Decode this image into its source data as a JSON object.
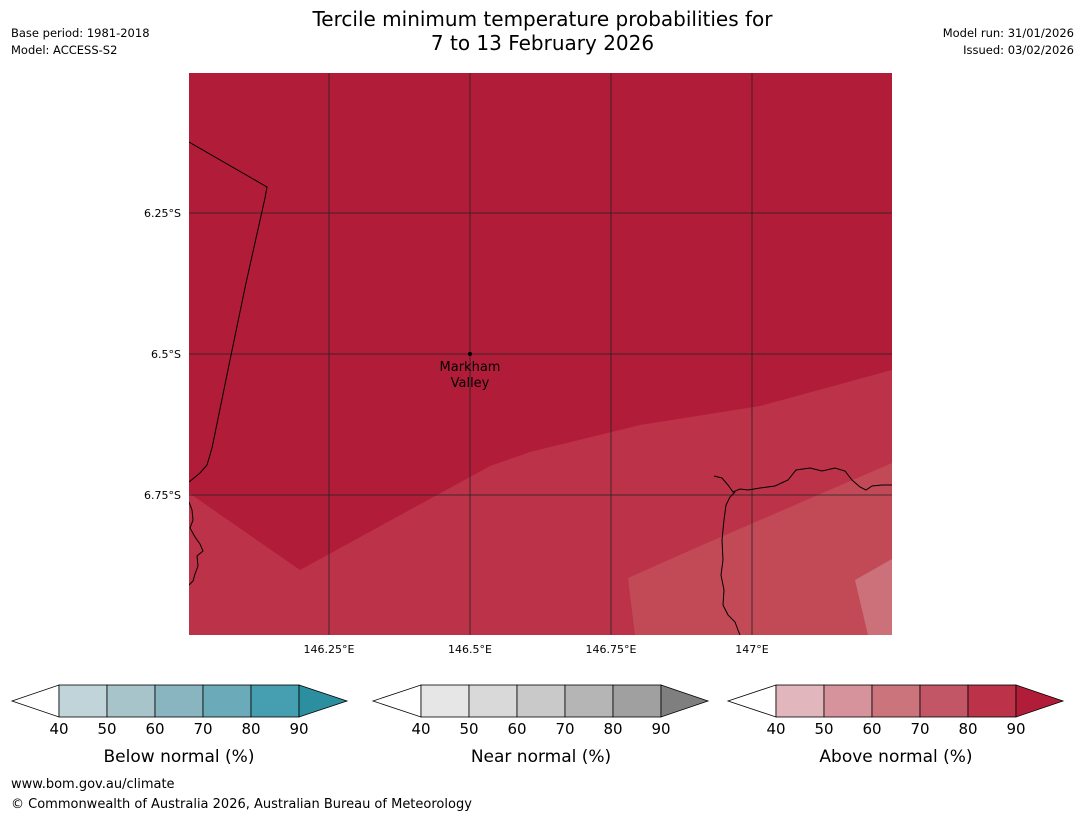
{
  "header": {
    "base_period": "Base period: 1981-2018",
    "model": "Model: ACCESS-S2",
    "title_line1": "Tercile minimum temperature probabilities for",
    "title_line2": "7 to 13 February 2026",
    "model_run": "Model run: 31/01/2026",
    "issued": "Issued: 03/02/2026"
  },
  "map": {
    "lat_labels": [
      "6.25°S",
      "6.5°S",
      "6.75°S"
    ],
    "lon_labels": [
      "146.25°E",
      "146.5°E",
      "146.75°E",
      "147°E"
    ],
    "place": {
      "name_line1": "Markham",
      "name_line2": "Valley"
    },
    "fill_colors": {
      "above_90": "#b11d38",
      "above_80": "#bc3249",
      "above_70": "#c24a57",
      "above_60": "#cc717a"
    }
  },
  "colorbars": [
    {
      "title": "Below normal (%)",
      "ticks": [
        "40",
        "50",
        "60",
        "70",
        "80",
        "90"
      ],
      "colors": [
        "#c0d4da",
        "#a6c4ca",
        "#89b5c0",
        "#6baab9",
        "#469fb0",
        "#2b8fa0"
      ]
    },
    {
      "title": "Near normal (%)",
      "ticks": [
        "40",
        "50",
        "60",
        "70",
        "80",
        "90"
      ],
      "colors": [
        "#e6e6e6",
        "#d9d9d9",
        "#c9c9c9",
        "#b5b5b5",
        "#a0a0a0",
        "#7f7f7f"
      ]
    },
    {
      "title": "Above normal (%)",
      "ticks": [
        "40",
        "50",
        "60",
        "70",
        "80",
        "90"
      ],
      "colors": [
        "#e2b6bd",
        "#d6939c",
        "#cc747c",
        "#c25566",
        "#bc3249",
        "#b11d38"
      ]
    }
  ],
  "footer": {
    "url": "www.bom.gov.au/climate",
    "copyright": "© Commonwealth of Australia 2026, Australian Bureau of Meteorology"
  }
}
